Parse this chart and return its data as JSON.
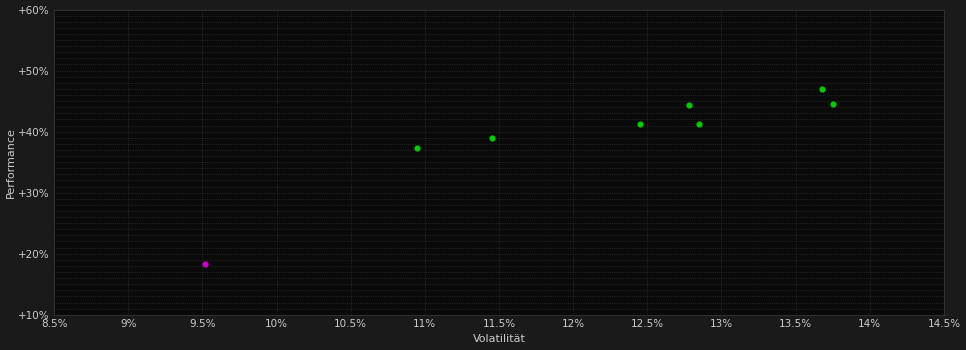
{
  "background_color": "#1a1a1a",
  "plot_bg_color": "#0a0a0a",
  "grid_color": "#3a3a3a",
  "text_color": "#cccccc",
  "xlabel": "Volatilität",
  "ylabel": "Performance",
  "xlim": [
    0.085,
    0.145
  ],
  "ylim": [
    0.1,
    0.6
  ],
  "xticks": [
    0.085,
    0.09,
    0.095,
    0.1,
    0.105,
    0.11,
    0.115,
    0.12,
    0.125,
    0.13,
    0.135,
    0.14,
    0.145
  ],
  "yticks": [
    0.1,
    0.2,
    0.3,
    0.4,
    0.5,
    0.6
  ],
  "minor_yticks": [
    0.1,
    0.11,
    0.12,
    0.13,
    0.14,
    0.15,
    0.16,
    0.17,
    0.18,
    0.19,
    0.2,
    0.21,
    0.22,
    0.23,
    0.24,
    0.25,
    0.26,
    0.27,
    0.28,
    0.29,
    0.3,
    0.31,
    0.32,
    0.33,
    0.34,
    0.35,
    0.36,
    0.37,
    0.38,
    0.39,
    0.4,
    0.41,
    0.42,
    0.43,
    0.44,
    0.45,
    0.46,
    0.47,
    0.48,
    0.49,
    0.5,
    0.51,
    0.52,
    0.53,
    0.54,
    0.55,
    0.56,
    0.57,
    0.58,
    0.59,
    0.6
  ],
  "minor_xticks": [
    0.085,
    0.09,
    0.095,
    0.1,
    0.105,
    0.11,
    0.115,
    0.12,
    0.125,
    0.13,
    0.135,
    0.14,
    0.145
  ],
  "ytick_labels": [
    "+10%",
    "+20%",
    "+30%",
    "+40%",
    "+50%",
    "+60%"
  ],
  "xtick_labels": [
    "8.5%",
    "9%",
    "9.5%",
    "10%",
    "10.5%",
    "11%",
    "11.5%",
    "12%",
    "12.5%",
    "13%",
    "13.5%",
    "14%",
    "14.5%"
  ],
  "green_points": [
    [
      0.1095,
      0.373
    ],
    [
      0.1145,
      0.39
    ],
    [
      0.1245,
      0.413
    ],
    [
      0.1278,
      0.444
    ],
    [
      0.1285,
      0.413
    ],
    [
      0.1368,
      0.47
    ],
    [
      0.1375,
      0.445
    ]
  ],
  "magenta_points": [
    [
      0.0952,
      0.183
    ]
  ],
  "green_color": "#00cc00",
  "magenta_color": "#cc00cc",
  "marker_size": 12,
  "axis_fontsize": 8,
  "tick_fontsize": 7.5
}
